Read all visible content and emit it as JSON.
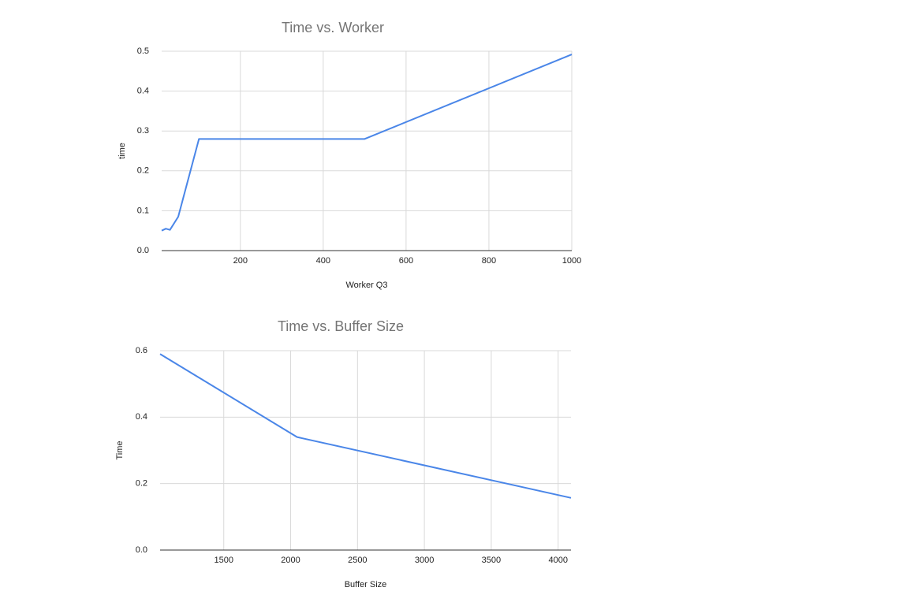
{
  "chart_data": [
    {
      "type": "line",
      "title": "Time vs. Worker",
      "xlabel": "Worker Q3",
      "ylabel": "time",
      "x": [
        10,
        20,
        30,
        50,
        100,
        500,
        1000
      ],
      "series": [
        {
          "name": "time",
          "color": "#4a86e8",
          "values": [
            0.05,
            0.055,
            0.052,
            0.085,
            0.28,
            0.28,
            0.492
          ]
        }
      ],
      "xlim": [
        10,
        1000
      ],
      "xticks": [
        200,
        400,
        600,
        800,
        1000
      ],
      "ylim": [
        0,
        0.5
      ],
      "yticks": [
        {
          "value": 0,
          "label": "0.0"
        },
        0.1,
        0.2,
        0.3,
        0.4,
        0.5
      ],
      "grid": true
    },
    {
      "type": "line",
      "title": "Time vs. Buffer Size",
      "xlabel": "Buffer Size",
      "ylabel": "Time",
      "x": [
        1024,
        2048,
        4096
      ],
      "series": [
        {
          "name": "Time",
          "color": "#4a86e8",
          "values": [
            0.59,
            0.34,
            0.157
          ]
        }
      ],
      "xlim": [
        1024,
        4096
      ],
      "xticks": [
        1500,
        2000,
        2500,
        3000,
        3500,
        4000
      ],
      "ylim": [
        0,
        0.6
      ],
      "yticks": [
        {
          "value": 0,
          "label": "0.0"
        },
        0.2,
        0.4,
        0.6
      ],
      "grid": true
    }
  ]
}
